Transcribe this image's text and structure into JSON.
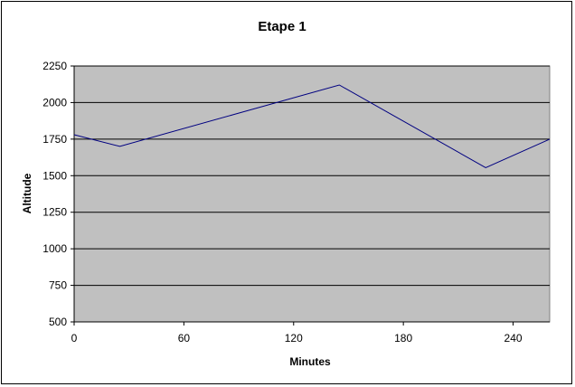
{
  "chart_data": {
    "type": "line",
    "title": "Etape 1",
    "xlabel": "Minutes",
    "ylabel": "Altitude",
    "xlim": [
      0,
      260
    ],
    "ylim": [
      500,
      2250
    ],
    "x_ticks": [
      0,
      60,
      120,
      180,
      240
    ],
    "y_ticks": [
      500,
      750,
      1000,
      1250,
      1500,
      1750,
      2000,
      2250
    ],
    "x_tick_labels": [
      "0",
      "60",
      "120",
      "180",
      "240"
    ],
    "y_tick_labels": [
      "500",
      "750",
      "1000",
      "1250",
      "1500",
      "1750",
      "2000",
      "2250"
    ],
    "grid": "horizontal",
    "legend": "none",
    "plot_background": "#c0c0c0",
    "series": [
      {
        "color": "#000080",
        "x": [
          0,
          25,
          145,
          225,
          260
        ],
        "y": [
          1780,
          1700,
          2120,
          1555,
          1750
        ]
      }
    ]
  }
}
